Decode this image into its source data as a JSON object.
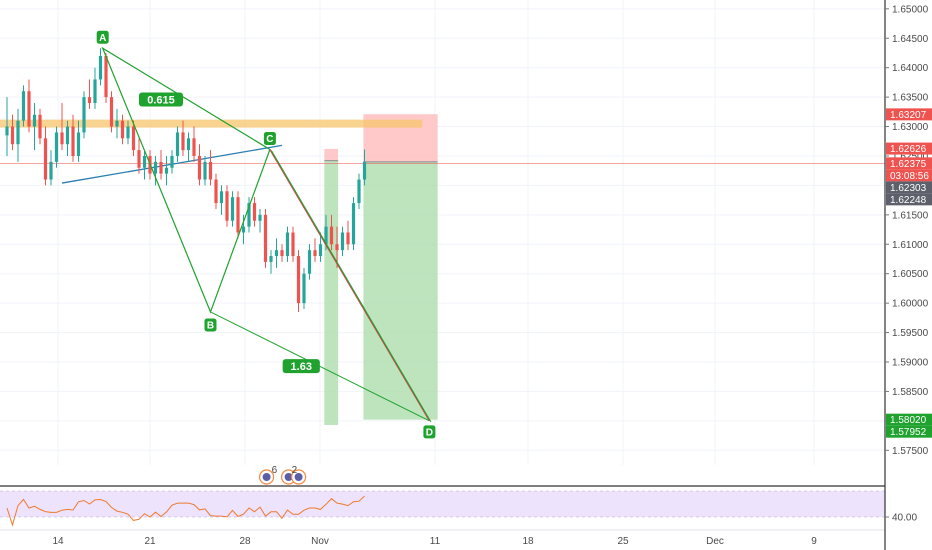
{
  "colors": {
    "up": "#26a69a",
    "down": "#ef5350",
    "pattern": "#1fa22e",
    "target": "#a8dba8",
    "stop": "#ffc0c0",
    "resistance": "#f7c46b",
    "trend": "#2a7fb0",
    "rsi": "#ef7a2f",
    "rsi_band": "#e8dcfb"
  },
  "chart_data": {
    "type": "candlestick",
    "x_ticks": [
      "14",
      "21",
      "28",
      "Nov",
      "11",
      "18",
      "25",
      "Dec",
      "9"
    ],
    "y_ticks": [
      "1.65000",
      "1.64500",
      "1.64000",
      "1.63500",
      "1.63000",
      "1.62500",
      "1.62000",
      "1.61500",
      "1.61000",
      "1.60500",
      "1.60000",
      "1.59500",
      "1.59000",
      "1.58500",
      "1.58000",
      "1.57500"
    ],
    "ylim": [
      1.5725,
      1.6515
    ],
    "price_tags": [
      {
        "value": 1.63207,
        "label": "1.63207",
        "color": "#ef5350"
      },
      {
        "value": 1.62626,
        "label": "1.62626",
        "color": "#ef5350"
      },
      {
        "value": 1.62375,
        "label": "1.62375",
        "color": "#ef5350"
      },
      {
        "value": 1.6225,
        "label": "03:08:56",
        "color": "#ef5350"
      },
      {
        "value": 1.62303,
        "label": "1.62303",
        "color": "#5d606b"
      },
      {
        "value": 1.62248,
        "label": "1.62248",
        "color": "#5d606b"
      },
      {
        "value": 1.5802,
        "label": "1.58020",
        "color": "#1fa22e"
      },
      {
        "value": 1.57952,
        "label": "1.57952",
        "color": "#1fa22e"
      }
    ],
    "pattern_points": [
      {
        "label": "A",
        "x": 17.4,
        "y": 1.6433
      },
      {
        "label": "B",
        "x": 37.0,
        "y": 1.5985
      },
      {
        "label": "C",
        "x": 47.8,
        "y": 1.6261
      },
      {
        "label": "D",
        "x": 76.8,
        "y": 1.58
      }
    ],
    "ratios": [
      {
        "label": "0.615",
        "x": 28.0,
        "y": 1.6346
      },
      {
        "label": "1.63",
        "x": 53.5,
        "y": 1.5893
      }
    ],
    "resistance_level": 1.6305,
    "trendline": [
      {
        "x": 10.0,
        "y": 1.6204
      },
      {
        "x": 50.0,
        "y": 1.6268
      }
    ],
    "risk_reward": [
      {
        "x0": 57.7,
        "x1": 60.2,
        "entry": 1.6242,
        "stop": 1.6262,
        "target": 1.5793
      },
      {
        "x0": 64.8,
        "x1": 78.3,
        "entry": 1.624,
        "stop": 1.6321,
        "target": 1.5802
      }
    ],
    "rsi_label": "40.00",
    "rsi_value": 40.0,
    "event_badges": [
      {
        "x": 47.2,
        "count": "6"
      },
      {
        "x": 51.2,
        "count": "2"
      }
    ],
    "candles": [
      [
        1.6285,
        1.635,
        1.625,
        1.63
      ],
      [
        1.63,
        1.632,
        1.626,
        1.627
      ],
      [
        1.627,
        1.633,
        1.624,
        1.631
      ],
      [
        1.631,
        1.637,
        1.63,
        1.636
      ],
      [
        1.636,
        1.638,
        1.629,
        1.63
      ],
      [
        1.63,
        1.634,
        1.626,
        1.632
      ],
      [
        1.632,
        1.633,
        1.627,
        1.628
      ],
      [
        1.628,
        1.63,
        1.62,
        1.621
      ],
      [
        1.621,
        1.626,
        1.62,
        1.624
      ],
      [
        1.624,
        1.63,
        1.623,
        1.629
      ],
      [
        1.629,
        1.634,
        1.626,
        1.627
      ],
      [
        1.627,
        1.631,
        1.625,
        1.63
      ],
      [
        1.63,
        1.632,
        1.624,
        1.625
      ],
      [
        1.625,
        1.631,
        1.624,
        1.629
      ],
      [
        1.629,
        1.636,
        1.628,
        1.635
      ],
      [
        1.635,
        1.638,
        1.633,
        1.634
      ],
      [
        1.634,
        1.64,
        1.633,
        1.638
      ],
      [
        1.638,
        1.6433,
        1.637,
        1.642
      ],
      [
        1.642,
        1.6425,
        1.634,
        1.635
      ],
      [
        1.635,
        1.636,
        1.629,
        1.63
      ],
      [
        1.63,
        1.633,
        1.628,
        1.631
      ],
      [
        1.631,
        1.632,
        1.627,
        1.628
      ],
      [
        1.628,
        1.631,
        1.627,
        1.63
      ],
      [
        1.63,
        1.631,
        1.625,
        1.626
      ],
      [
        1.626,
        1.628,
        1.622,
        1.623
      ],
      [
        1.623,
        1.626,
        1.621,
        1.625
      ],
      [
        1.625,
        1.626,
        1.621,
        1.622
      ],
      [
        1.622,
        1.625,
        1.62,
        1.624
      ],
      [
        1.624,
        1.626,
        1.621,
        1.622
      ],
      [
        1.622,
        1.625,
        1.62,
        1.623
      ],
      [
        1.623,
        1.626,
        1.622,
        1.625
      ],
      [
        1.625,
        1.63,
        1.624,
        1.629
      ],
      [
        1.629,
        1.631,
        1.625,
        1.626
      ],
      [
        1.626,
        1.629,
        1.624,
        1.628
      ],
      [
        1.628,
        1.63,
        1.624,
        1.625
      ],
      [
        1.625,
        1.627,
        1.62,
        1.621
      ],
      [
        1.621,
        1.625,
        1.62,
        1.624
      ],
      [
        1.624,
        1.626,
        1.62,
        1.621
      ],
      [
        1.621,
        1.622,
        1.616,
        1.617
      ],
      [
        1.617,
        1.62,
        1.615,
        1.619
      ],
      [
        1.619,
        1.62,
        1.613,
        1.614
      ],
      [
        1.614,
        1.619,
        1.613,
        1.618
      ],
      [
        1.618,
        1.619,
        1.611,
        1.612
      ],
      [
        1.612,
        1.615,
        1.61,
        1.613
      ],
      [
        1.613,
        1.618,
        1.612,
        1.617
      ],
      [
        1.617,
        1.618,
        1.613,
        1.614
      ],
      [
        1.614,
        1.616,
        1.612,
        1.615
      ],
      [
        1.615,
        1.616,
        1.606,
        1.607
      ],
      [
        1.607,
        1.609,
        1.605,
        1.608
      ],
      [
        1.608,
        1.611,
        1.606,
        1.609
      ],
      [
        1.609,
        1.61,
        1.607,
        1.608
      ],
      [
        1.608,
        1.613,
        1.607,
        1.612
      ],
      [
        1.612,
        1.613,
        1.607,
        1.608
      ],
      [
        1.608,
        1.609,
        1.5985,
        1.6
      ],
      [
        1.6,
        1.606,
        1.599,
        1.605
      ],
      [
        1.605,
        1.61,
        1.604,
        1.609
      ],
      [
        1.609,
        1.611,
        1.607,
        1.608
      ],
      [
        1.608,
        1.612,
        1.607,
        1.61
      ],
      [
        1.61,
        1.615,
        1.609,
        1.613
      ],
      [
        1.613,
        1.615,
        1.609,
        1.61
      ],
      [
        1.61,
        1.613,
        1.606,
        1.609
      ],
      [
        1.609,
        1.613,
        1.608,
        1.612
      ],
      [
        1.612,
        1.614,
        1.609,
        1.61
      ],
      [
        1.61,
        1.618,
        1.609,
        1.617
      ],
      [
        1.617,
        1.622,
        1.616,
        1.621
      ],
      [
        1.621,
        1.6261,
        1.62,
        1.624
      ]
    ]
  }
}
